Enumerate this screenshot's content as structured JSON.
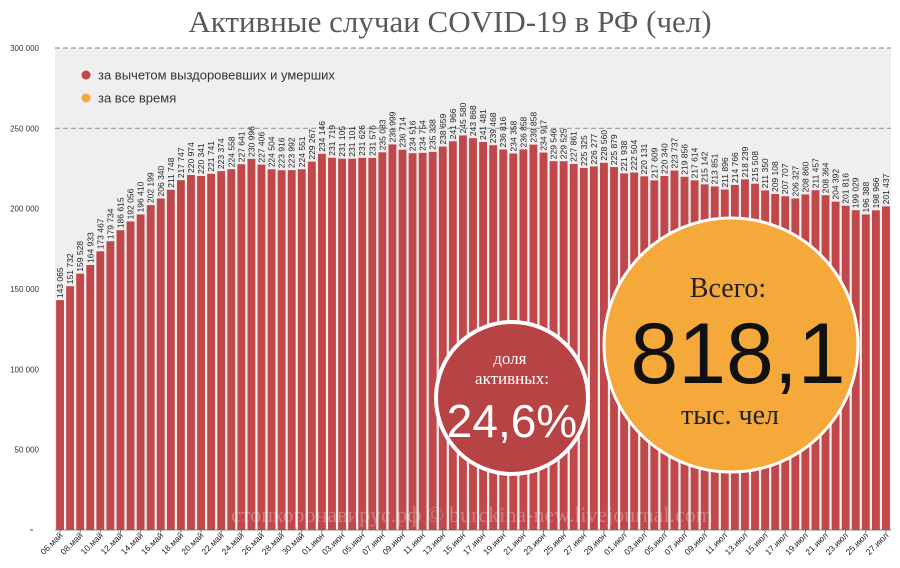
{
  "chart_data": {
    "type": "bar",
    "title": "Активные случаи COVID-19 в РФ (чел)",
    "ylim": [
      0,
      300000
    ],
    "yticks": [
      {
        "v": 50000,
        "label": "50 000"
      },
      {
        "v": 100000,
        "label": "100 000"
      },
      {
        "v": 150000,
        "label": "150 000"
      },
      {
        "v": 200000,
        "label": "200 000"
      },
      {
        "v": 250000,
        "label": "250 000"
      },
      {
        "v": 300000,
        "label": "300 000"
      }
    ],
    "dashed_gridlines": [
      250000,
      300000
    ],
    "legend": [
      {
        "label": "за вычетом выздоровевших и умерших",
        "color": "#c0474a"
      },
      {
        "label": "за все время",
        "color": "#f5a93a"
      }
    ],
    "legend_position": "top-left",
    "bar_color": "#c0474a",
    "categories": [
      "06.май",
      "07.май",
      "08.май",
      "09.май",
      "10.май",
      "11.май",
      "12.май",
      "13.май",
      "14.май",
      "15.май",
      "16.май",
      "17.май",
      "18.май",
      "19.май",
      "20.май",
      "21.май",
      "22.май",
      "23.май",
      "24.май",
      "25.май",
      "26.май",
      "27.май",
      "28.май",
      "29.май",
      "30.май",
      "31.май",
      "01.июн",
      "02.июн",
      "03.июн",
      "04.июн",
      "05.июн",
      "06.июн",
      "07.июн",
      "08.июн",
      "09.июн",
      "10.июн",
      "11.июн",
      "12.июн",
      "13.июн",
      "14.июн",
      "15.июн",
      "16.июн",
      "17.июн",
      "18.июн",
      "19.июн",
      "20.июн",
      "21.июн",
      "22.июн",
      "23.июн",
      "24.июн",
      "25.июн",
      "26.июн",
      "27.июн",
      "28.июн",
      "29.июн",
      "30.июн",
      "01.июл",
      "02.июл",
      "03.июл",
      "04.июл",
      "05.июл",
      "06.июл",
      "07.июл",
      "08.июл",
      "09.июл",
      "10.июл",
      "11.июл",
      "12.июл",
      "13.июл",
      "14.июл",
      "15.июл",
      "16.июл",
      "17.июл",
      "18.июл",
      "19.июл",
      "20.июл",
      "21.июл",
      "22.июл",
      "23.июл",
      "24.июл",
      "25.июл",
      "26.июл",
      "27.июл"
    ],
    "values": [
      143065,
      151732,
      159528,
      164933,
      173467,
      179734,
      186615,
      192056,
      196410,
      202199,
      206340,
      211748,
      217747,
      220974,
      220341,
      221741,
      223374,
      224558,
      227641,
      230996,
      227406,
      224504,
      223916,
      223992,
      224551,
      229267,
      234146,
      231719,
      231105,
      231101,
      231626,
      231576,
      235083,
      239999,
      236714,
      234516,
      234754,
      235338,
      238659,
      241966,
      245580,
      243868,
      241481,
      239468,
      236816,
      234358,
      236858,
      239858,
      234917,
      229546,
      229525,
      227861,
      225325,
      226277,
      228560,
      225879,
      221938,
      222504,
      220131,
      217609,
      220340,
      223737,
      219856,
      217614,
      215142,
      213851,
      211896,
      214766,
      218239,
      215508,
      211350,
      209108,
      207707,
      206327,
      208860,
      211457,
      208364,
      204392,
      201816,
      199029,
      196388,
      198966,
      201437
    ],
    "label_every_other_x": true,
    "annotations": {
      "share_title": "доля активных:",
      "share_value": "24,6%",
      "total_title": "Всего:",
      "total_value": "818,1",
      "total_unit": "тыс. чел"
    },
    "watermark": "стопкоронавирус.рф © burckina-new.livejournal.com"
  }
}
